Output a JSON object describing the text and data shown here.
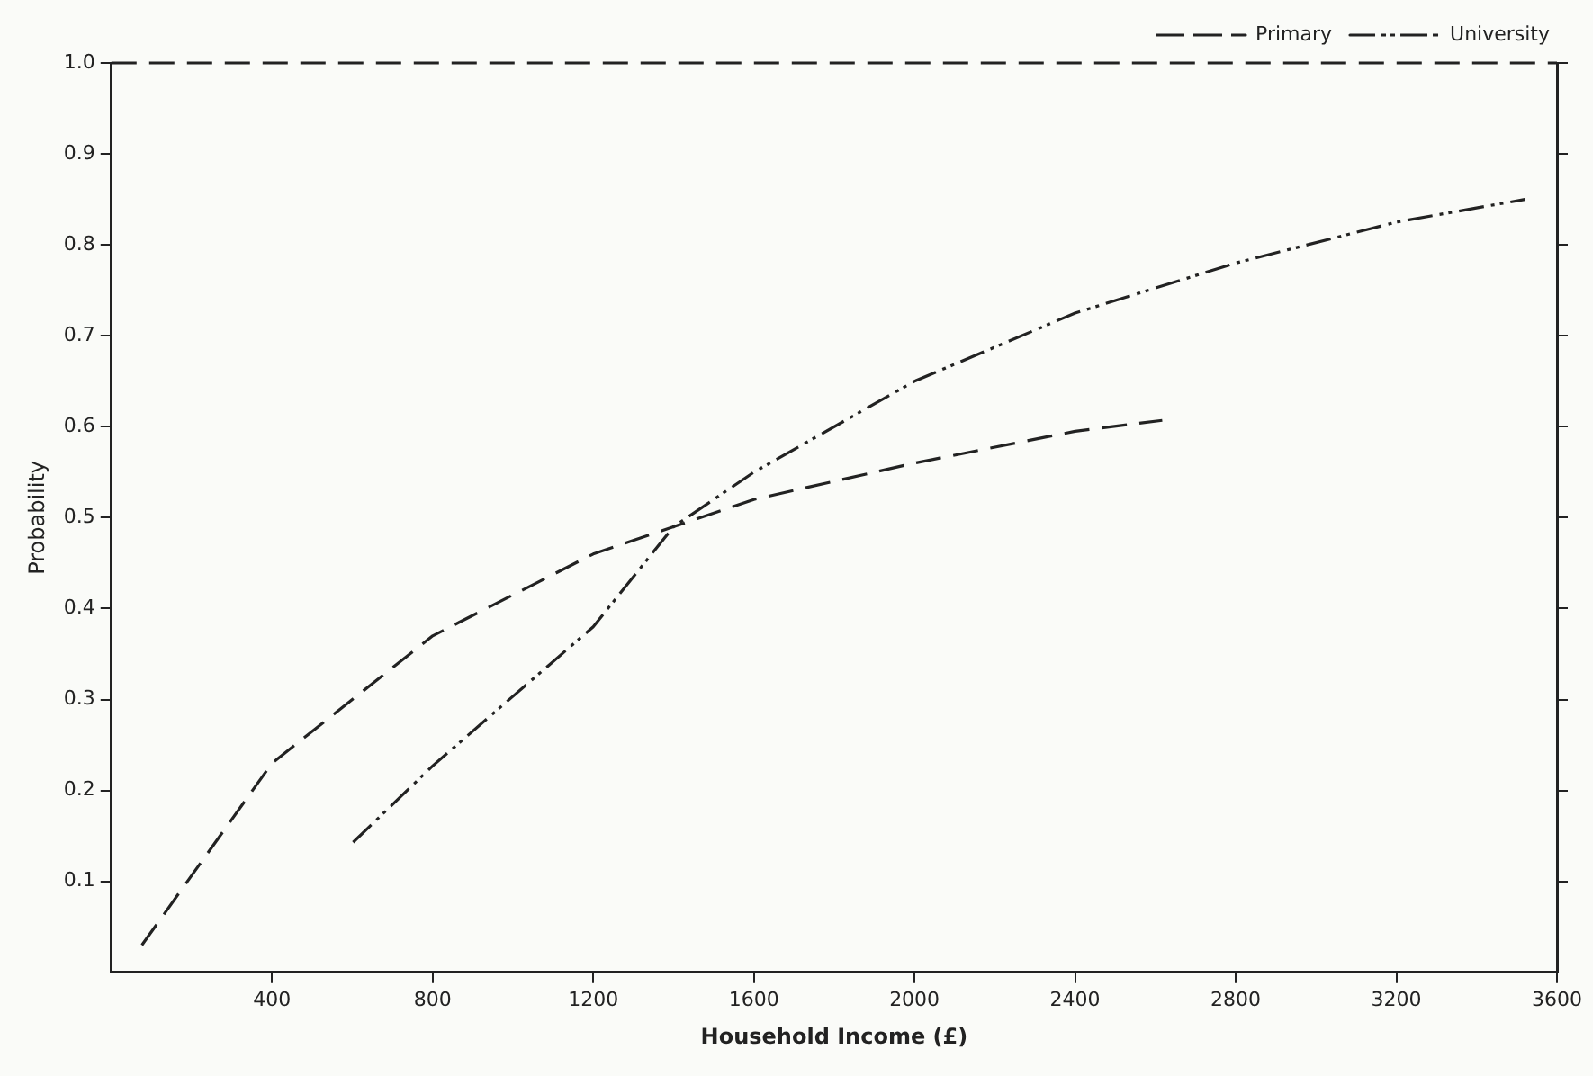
{
  "chart_data": {
    "type": "line",
    "xlabel": "Household Income (£)",
    "ylabel": "Probability",
    "xlim": [
      0,
      3600
    ],
    "xticks": [
      400,
      800,
      1200,
      1600,
      2000,
      2400,
      2800,
      3200,
      3600
    ],
    "ylim": [
      0,
      1
    ],
    "yticks": [
      0.1,
      0.2,
      0.3,
      0.4,
      0.5,
      0.6,
      0.7,
      0.8,
      0.9,
      {
        "value": 1,
        "label": "1.0"
      }
    ],
    "grid": false,
    "legend": "top right",
    "marker": "none",
    "ref_lines": [
      {
        "axis": "y",
        "value": 1,
        "label": null,
        "line_style": "dashed",
        "color": "#222222"
      }
    ],
    "series": [
      {
        "name": "Primary",
        "color": "#222222",
        "line_style": "dashed",
        "x": [
          76,
          400,
          800,
          1200,
          1600,
          2000,
          2400,
          2617
        ],
        "values": [
          0.03,
          0.23,
          0.37,
          0.46,
          0.52,
          0.56,
          0.595,
          0.607
        ]
      },
      {
        "name": "University",
        "color": "#222222",
        "line_style": "dashdotdot",
        "x": [
          602,
          800,
          1200,
          1400,
          1600,
          2000,
          2400,
          2800,
          3200,
          3520
        ],
        "values": [
          0.143,
          0.227,
          0.38,
          0.49,
          0.55,
          0.65,
          0.725,
          0.78,
          0.825,
          0.85
        ]
      }
    ]
  }
}
